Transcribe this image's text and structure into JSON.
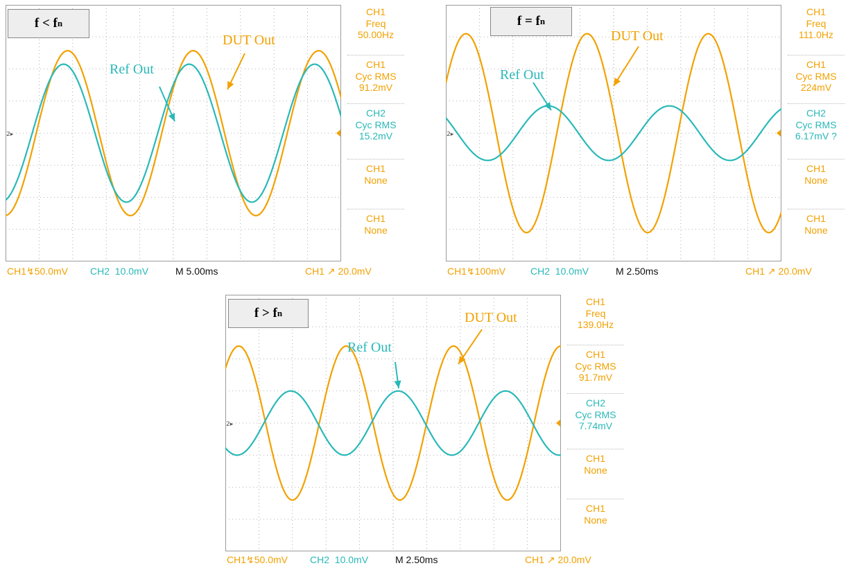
{
  "colors": {
    "ch1": "#f2a100",
    "ch2": "#2ab8b8",
    "grid": "#9a9a9a"
  },
  "panels": [
    {
      "condition": {
        "main": "f < f",
        "sub": "n"
      },
      "annotations": {
        "dut": "DUT Out",
        "ref": "Ref Out"
      },
      "measurements": [
        {
          "ch": "CH1",
          "label": "Freq",
          "value": "50.00Hz"
        },
        {
          "ch": "CH1",
          "label": "Cyc RMS",
          "value": "91.2mV"
        },
        {
          "ch": "CH2",
          "label": "Cyc RMS",
          "value": "15.2mV"
        },
        {
          "ch": "CH1",
          "label": "None",
          "value": ""
        },
        {
          "ch": "CH1",
          "label": "None",
          "value": ""
        }
      ],
      "status": {
        "ch1": "CH1",
        "ch1_scale": "50.0mV",
        "ch2": "CH2",
        "ch2_scale": "10.0mV",
        "time": "M 5.00ms",
        "trig_ch": "CH1",
        "trig_level": "20.0mV"
      }
    },
    {
      "condition": {
        "main": "f = f",
        "sub": "n"
      },
      "annotations": {
        "dut": "DUT Out",
        "ref": "Ref Out"
      },
      "measurements": [
        {
          "ch": "CH1",
          "label": "Freq",
          "value": "111.0Hz"
        },
        {
          "ch": "CH1",
          "label": "Cyc RMS",
          "value": "224mV"
        },
        {
          "ch": "CH2",
          "label": "Cyc RMS",
          "value": "6.17mV ?"
        },
        {
          "ch": "CH1",
          "label": "None",
          "value": ""
        },
        {
          "ch": "CH1",
          "label": "None",
          "value": ""
        }
      ],
      "status": {
        "ch1": "CH1",
        "ch1_scale": "100mV",
        "ch2": "CH2",
        "ch2_scale": "10.0mV",
        "time": "M 2.50ms",
        "trig_ch": "CH1",
        "trig_level": "20.0mV"
      }
    },
    {
      "condition": {
        "main": "f > f",
        "sub": "n"
      },
      "annotations": {
        "dut": "DUT Out",
        "ref": "Ref Out"
      },
      "measurements": [
        {
          "ch": "CH1",
          "label": "Freq",
          "value": "139.0Hz"
        },
        {
          "ch": "CH1",
          "label": "Cyc RMS",
          "value": "91.7mV"
        },
        {
          "ch": "CH2",
          "label": "Cyc RMS",
          "value": "7.74mV"
        },
        {
          "ch": "CH1",
          "label": "None",
          "value": ""
        },
        {
          "ch": "CH1",
          "label": "None",
          "value": ""
        }
      ],
      "status": {
        "ch1": "CH1",
        "ch1_scale": "50.0mV",
        "ch2": "CH2",
        "ch2_scale": "10.0mV",
        "time": "M 2.50ms",
        "trig_ch": "CH1",
        "trig_level": "20.0mV"
      }
    }
  ],
  "chart_data": [
    {
      "type": "line",
      "x_unit": "div",
      "xlim": [
        0,
        10
      ],
      "ylim": [
        -4,
        4
      ],
      "grid": true,
      "series": [
        {
          "name": "DUT Out",
          "channel": "CH1",
          "amplitude_div": 2.57,
          "period_div": 3.74,
          "peak_x_div": 1.85
        },
        {
          "name": "Ref Out",
          "channel": "CH2",
          "amplitude_div": 2.15,
          "period_div": 3.74,
          "peak_x_div": 1.73
        }
      ]
    },
    {
      "type": "line",
      "x_unit": "div",
      "xlim": [
        0,
        10
      ],
      "ylim": [
        -4,
        4
      ],
      "grid": true,
      "series": [
        {
          "name": "DUT Out",
          "channel": "CH1",
          "amplitude_div": 3.1,
          "period_div": 3.61,
          "peak_x_div": 0.6
        },
        {
          "name": "Ref Out",
          "channel": "CH2",
          "amplitude_div": 0.85,
          "period_div": 3.61,
          "peak_x_div": 3.05
        }
      ]
    },
    {
      "type": "line",
      "x_unit": "div",
      "xlim": [
        0,
        10
      ],
      "ylim": [
        -4,
        4
      ],
      "grid": true,
      "series": [
        {
          "name": "DUT Out",
          "channel": "CH1",
          "amplitude_div": 2.4,
          "period_div": 3.2,
          "peak_x_div": 0.4
        },
        {
          "name": "Ref Out",
          "channel": "CH2",
          "amplitude_div": 1.0,
          "period_div": 3.2,
          "peak_x_div": 1.95
        }
      ]
    }
  ]
}
